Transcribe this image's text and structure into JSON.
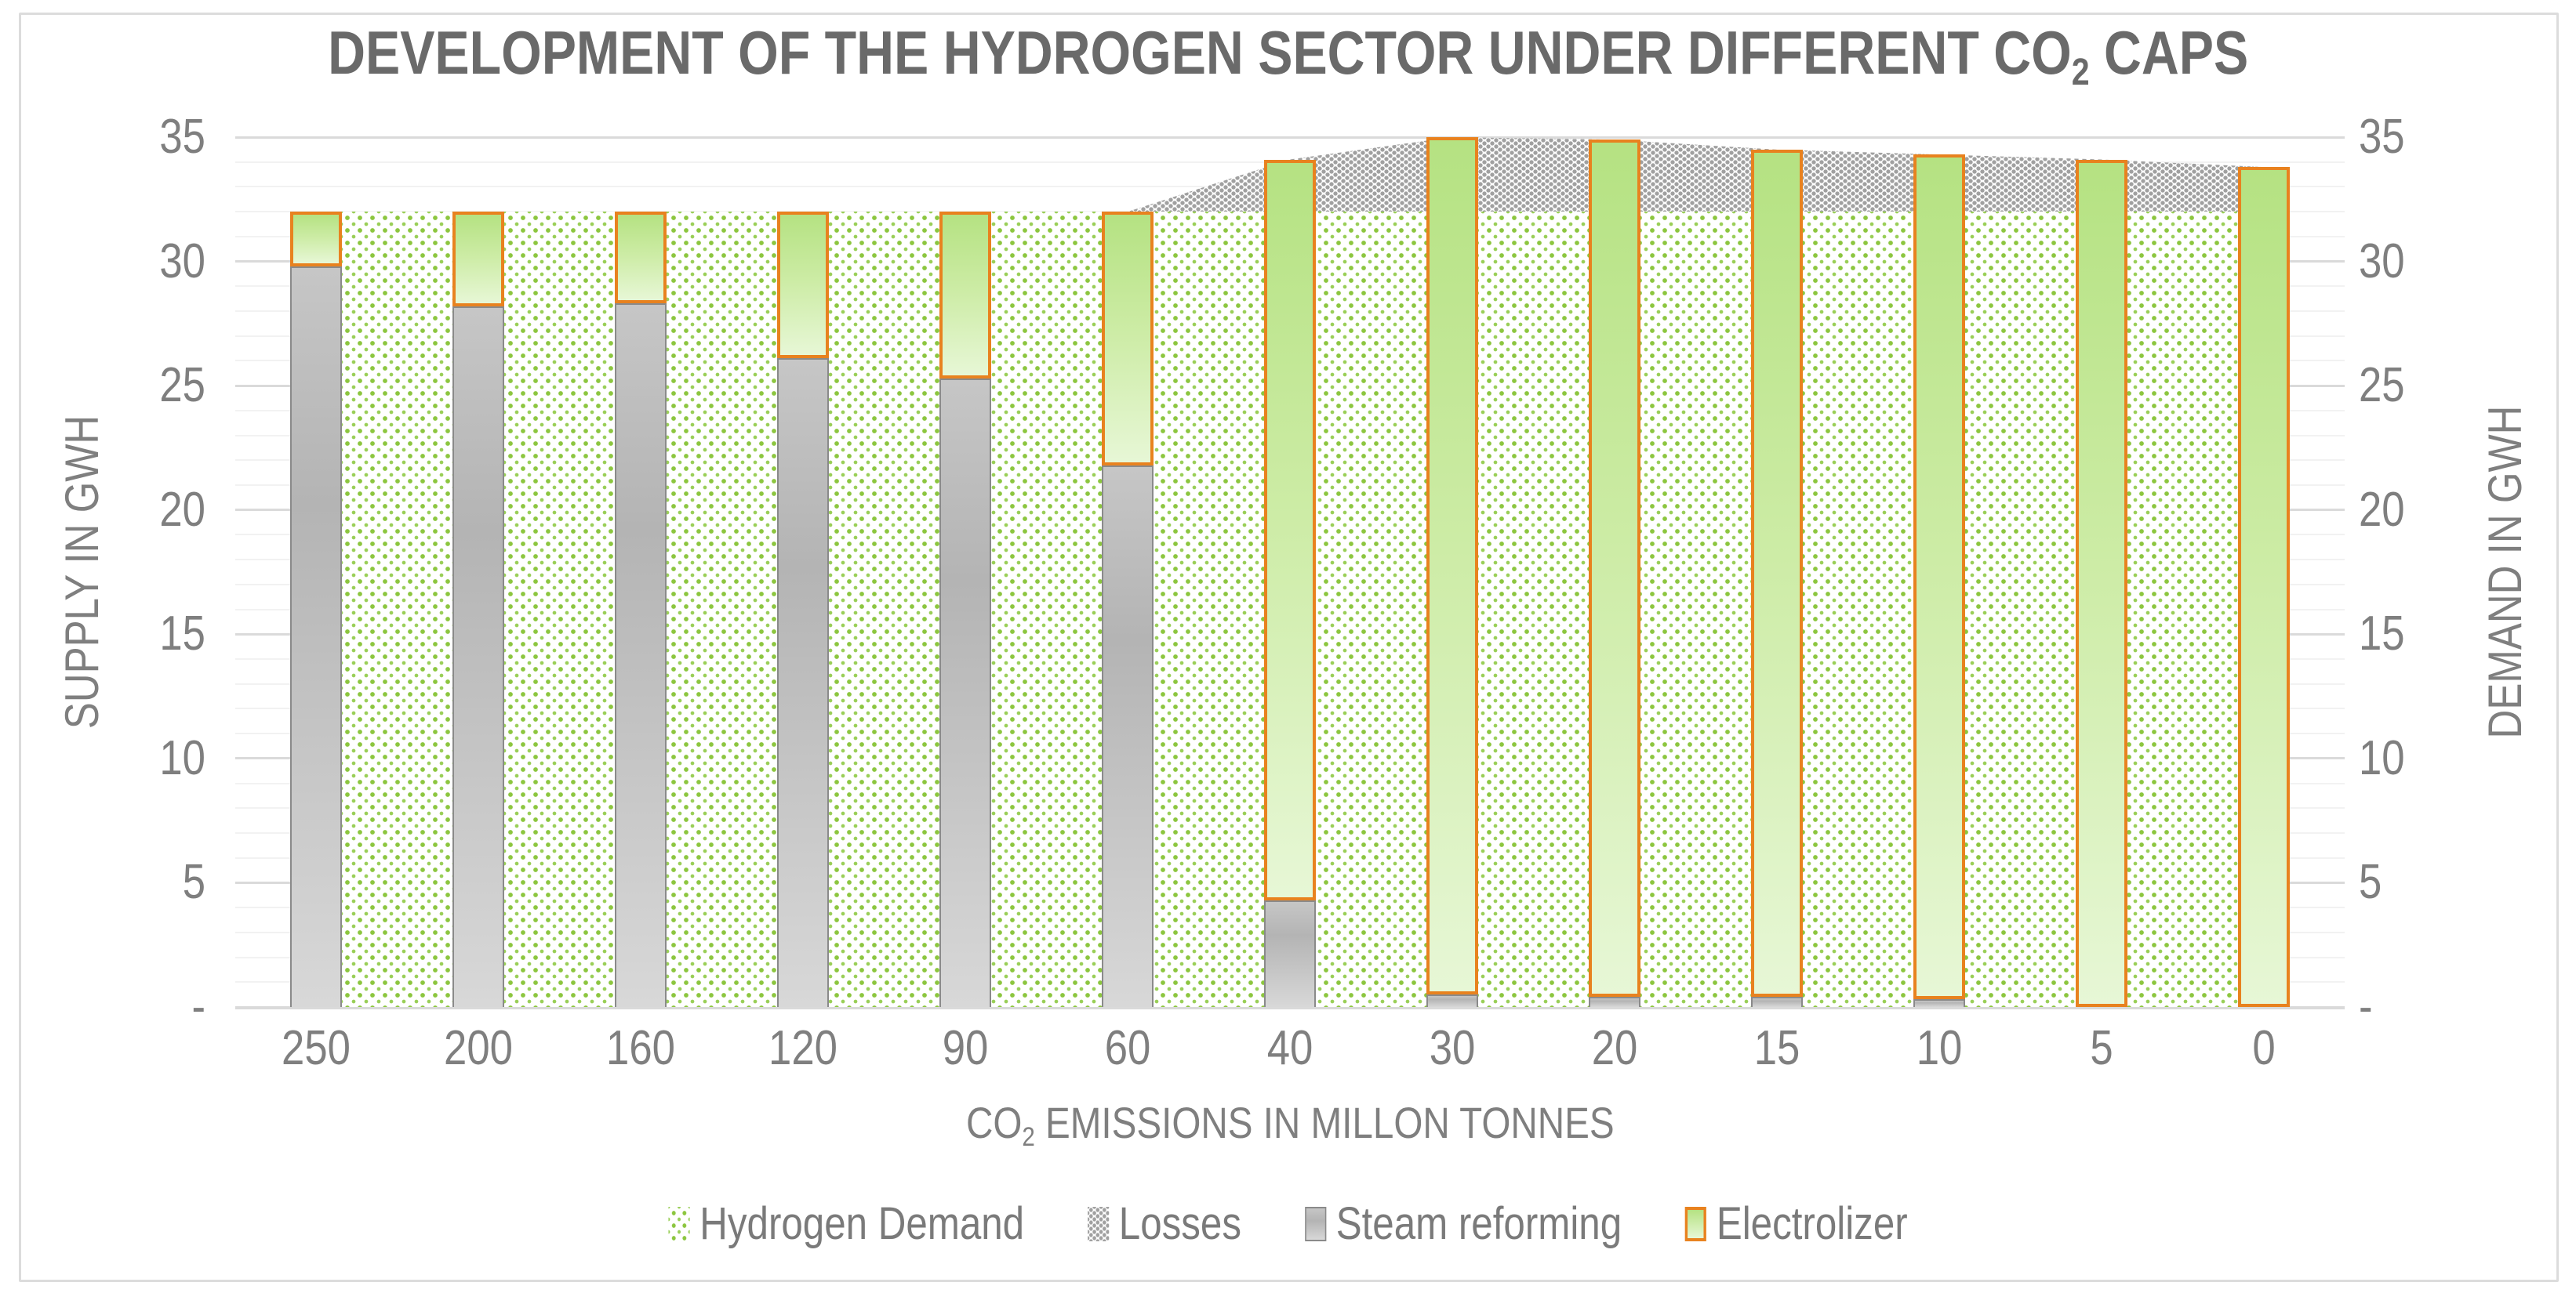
{
  "title": {
    "prefix": "DEVELOPMENT OF THE HYDROGEN SECTOR UNDER DIFFERENT CO",
    "sub": "2",
    "suffix": " CAPS"
  },
  "x_axis_title": {
    "prefix": "CO",
    "sub": "2",
    "suffix": " EMISSIONS IN MILLON TONNES"
  },
  "y_axis_left_title": "SUPPLY IN GWH",
  "y_axis_right_title": "DEMAND IN GWH",
  "legend": [
    {
      "label": "Hydrogen Demand",
      "swatch": "demand"
    },
    {
      "label": "Losses",
      "swatch": "losses"
    },
    {
      "label": "Steam reforming",
      "swatch": "steam"
    },
    {
      "label": "Electrolizer",
      "swatch": "electrolizer"
    }
  ],
  "chart_data": {
    "type": "combo: stacked areas (demand side) + stacked columns (supply side)",
    "title": "DEVELOPMENT OF THE HYDROGEN SECTOR UNDER DIFFERENT CO2 CAPS",
    "xlabel": "CO2 EMISSIONS IN MILLON TONNES",
    "ylabel_left": "SUPPLY IN GWH",
    "ylabel_right": "DEMAND IN GWH",
    "categories": [
      250,
      200,
      160,
      120,
      90,
      60,
      40,
      30,
      20,
      15,
      10,
      5,
      0
    ],
    "series": [
      {
        "name": "Hydrogen Demand",
        "type": "area",
        "pattern": "green-dots",
        "values": [
          32,
          32,
          32,
          32,
          32,
          32,
          32,
          32,
          32,
          32,
          32,
          32,
          32
        ]
      },
      {
        "name": "Losses",
        "type": "area",
        "stacked_on": "Hydrogen Demand",
        "pattern": "gray-dots",
        "values": [
          0,
          0,
          0,
          0,
          0,
          0,
          2.1,
          3.0,
          2.9,
          2.5,
          2.3,
          2.1,
          1.8
        ]
      },
      {
        "name": "Steam reforming",
        "type": "column",
        "stack": "supply",
        "values": [
          29.8,
          28.2,
          28.3,
          26.1,
          25.3,
          21.8,
          4.3,
          0.5,
          0.4,
          0.4,
          0.3,
          0,
          0
        ]
      },
      {
        "name": "Electrolizer",
        "type": "column",
        "stack": "supply",
        "values": [
          2.2,
          3.8,
          3.7,
          5.9,
          6.7,
          10.2,
          29.8,
          34.5,
          34.5,
          34.1,
          34.0,
          34.1,
          33.8
        ]
      }
    ],
    "ylim": [
      0,
      35
    ],
    "y_major_tick_values": [
      35,
      30,
      25,
      20,
      15,
      10,
      5,
      0
    ],
    "y_tick_labels": [
      "35",
      "30",
      "25",
      "20",
      "15",
      "10",
      "5",
      "-"
    ],
    "y_minor_step": 1,
    "grid": "horizontal major + minor",
    "legend_position": "bottom"
  },
  "colors": {
    "accent_orange": "#E8821F",
    "demand_dot_green": "#8CC63F",
    "demand_dot_green2": "#9ACF58",
    "losses_dot_gray": "#A0A0A0",
    "steam_border": "#8A8A8A",
    "electrolizer_green": "#B5E282",
    "electrolizer_light": "#E7F7D6",
    "grid_major": "#DADADA",
    "grid_minor": "#F2F2F2",
    "text_gray": "#7F7F7F",
    "title_gray": "#6A6A6A",
    "frame_gray": "#DCDCDC"
  }
}
